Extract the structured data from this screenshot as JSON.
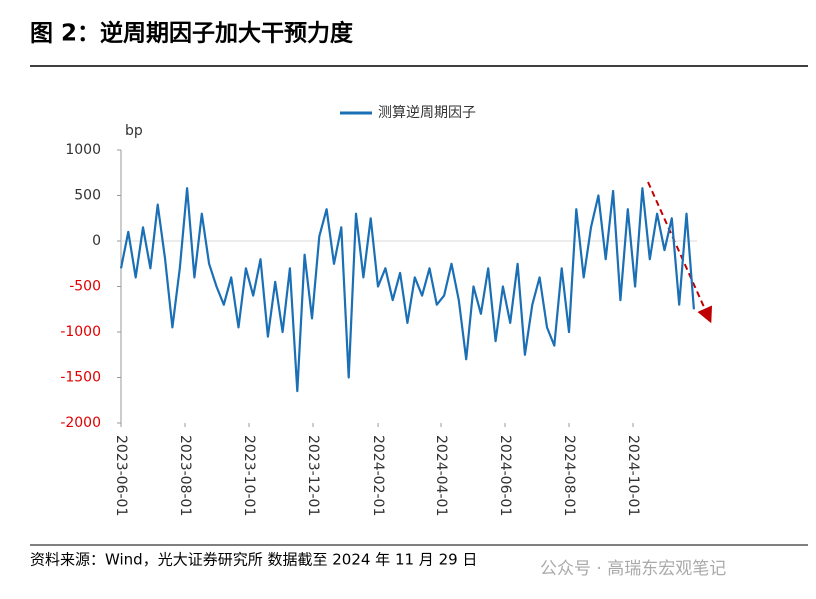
{
  "chart_data": {
    "type": "line",
    "title": "图 2：逆周期因子加大干预力度",
    "y_unit": "bp",
    "source": "资料来源：Wind，光大证券研究所  数据截至 2024 年 11 月 29 日",
    "watermark": "公众号 · 高瑞东宏观笔记",
    "x": [
      "2023-06-01",
      "2023-06-08",
      "2023-06-15",
      "2023-06-22",
      "2023-06-29",
      "2023-07-06",
      "2023-07-13",
      "2023-07-20",
      "2023-07-27",
      "2023-08-03",
      "2023-08-10",
      "2023-08-17",
      "2023-08-24",
      "2023-08-31",
      "2023-09-07",
      "2023-09-14",
      "2023-09-21",
      "2023-09-28",
      "2023-10-05",
      "2023-10-12",
      "2023-10-19",
      "2023-10-26",
      "2023-11-02",
      "2023-11-09",
      "2023-11-16",
      "2023-11-23",
      "2023-11-30",
      "2023-12-07",
      "2023-12-14",
      "2023-12-21",
      "2023-12-28",
      "2024-01-04",
      "2024-01-11",
      "2024-01-18",
      "2024-01-25",
      "2024-02-01",
      "2024-02-08",
      "2024-02-15",
      "2024-02-22",
      "2024-02-29",
      "2024-03-07",
      "2024-03-14",
      "2024-03-21",
      "2024-03-28",
      "2024-04-04",
      "2024-04-11",
      "2024-04-18",
      "2024-04-25",
      "2024-05-02",
      "2024-05-09",
      "2024-05-16",
      "2024-05-23",
      "2024-05-30",
      "2024-06-06",
      "2024-06-13",
      "2024-06-20",
      "2024-06-27",
      "2024-07-04",
      "2024-07-11",
      "2024-07-18",
      "2024-07-25",
      "2024-08-01",
      "2024-08-08",
      "2024-08-15",
      "2024-08-22",
      "2024-08-29",
      "2024-09-05",
      "2024-09-12",
      "2024-09-19",
      "2024-09-26",
      "2024-10-03",
      "2024-10-10",
      "2024-10-17",
      "2024-10-24",
      "2024-10-31",
      "2024-11-07",
      "2024-11-14",
      "2024-11-21",
      "2024-11-28"
    ],
    "series": [
      {
        "name": "测算逆周期因子",
        "color": "#1a6fb5",
        "values": [
          -300,
          100,
          -400,
          150,
          -300,
          400,
          -200,
          -950,
          -300,
          580,
          -400,
          300,
          -250,
          -500,
          -700,
          -400,
          -950,
          -300,
          -600,
          -200,
          -1050,
          -450,
          -1000,
          -300,
          -1650,
          -150,
          -850,
          50,
          350,
          -250,
          150,
          -1500,
          300,
          -400,
          250,
          -500,
          -300,
          -650,
          -350,
          -900,
          -400,
          -600,
          -300,
          -700,
          -600,
          -250,
          -650,
          -1300,
          -500,
          -800,
          -300,
          -1100,
          -500,
          -900,
          -250,
          -1250,
          -700,
          -400,
          -950,
          -1150,
          -300,
          -1000,
          350,
          -400,
          150,
          500,
          -200,
          550,
          -650,
          350,
          -500,
          580,
          -200,
          300,
          -100,
          250,
          -700,
          300,
          -750
        ]
      }
    ],
    "xlim": [
      "2023-06-01",
      "2024-12-01"
    ],
    "xticks": [
      "2023-06-01",
      "2023-08-01",
      "2023-10-01",
      "2023-12-01",
      "2024-02-01",
      "2024-04-01",
      "2024-06-01",
      "2024-08-01",
      "2024-10-01"
    ],
    "ylim": [
      -2000,
      1000
    ],
    "yticks": [
      1000,
      500,
      0,
      -500,
      -1000,
      -1500,
      -2000
    ],
    "negative_tick_color": "#e00000",
    "zero_line": true,
    "legend": "top"
  }
}
